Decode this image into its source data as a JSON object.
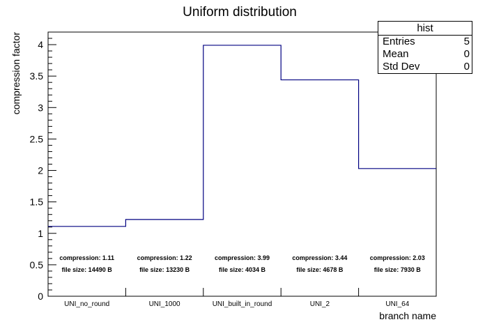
{
  "chart_data": {
    "type": "bar",
    "title": "Uniform distribution",
    "xlabel": "branch name",
    "ylabel": "compression factor",
    "categories": [
      "UNI_no_round",
      "UNI_1000",
      "UNI_built_in_round",
      "UNI_2",
      "UNI_64"
    ],
    "values": [
      1.11,
      1.22,
      3.99,
      3.44,
      2.03
    ],
    "annotations": [
      {
        "compression": "compression: 1.11",
        "filesize": "file size: 14490 B"
      },
      {
        "compression": "compression: 1.22",
        "filesize": "file size: 13230 B"
      },
      {
        "compression": "compression: 3.99",
        "filesize": "file size: 4034 B"
      },
      {
        "compression": "compression: 3.44",
        "filesize": "file size: 4678 B"
      },
      {
        "compression": "compression: 2.03",
        "filesize": "file size: 7930 B"
      }
    ],
    "ylim": [
      0,
      4.2
    ],
    "yticks": [
      "0",
      "0.5",
      "1",
      "1.5",
      "2",
      "2.5",
      "3",
      "3.5",
      "4"
    ],
    "line_color": "#000080",
    "grid": false,
    "legend": "none"
  },
  "stats": {
    "title": "hist",
    "rows": [
      {
        "label": "Entries",
        "value": "5"
      },
      {
        "label": "Mean",
        "value": "0"
      },
      {
        "label": "Std Dev",
        "value": "0"
      }
    ]
  }
}
